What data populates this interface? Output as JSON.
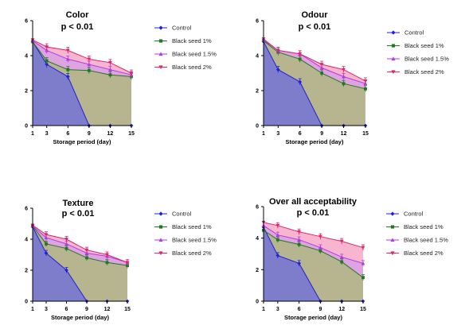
{
  "colors": {
    "Control": "#1f1fe6",
    "Black seed 1%": "#1e7a1e",
    "Black seed 1.5%": "#b03be8",
    "Black seed 2%": "#e0246e"
  },
  "chart_data": [
    {
      "type": "area",
      "title": "Color",
      "subtitle": "p < 0.01",
      "xlabel": "Storage period (day)",
      "ylabel": "",
      "x": [
        1,
        3,
        6,
        9,
        12,
        15
      ],
      "ylim": [
        0,
        6
      ],
      "yticks": [
        0,
        2,
        4,
        6
      ],
      "legend_position": "right",
      "series": [
        {
          "name": "Control",
          "values": [
            4.8,
            3.5,
            2.8,
            0,
            0,
            0
          ]
        },
        {
          "name": "Black seed 1%",
          "values": [
            4.8,
            3.7,
            3.2,
            3.15,
            2.9,
            2.8
          ]
        },
        {
          "name": "Black seed 1.5%",
          "values": [
            4.85,
            4.3,
            3.8,
            3.5,
            3.2,
            2.9
          ]
        },
        {
          "name": "Black seed 2%",
          "values": [
            4.9,
            4.5,
            4.3,
            3.8,
            3.6,
            3.0
          ]
        }
      ]
    },
    {
      "type": "area",
      "title": "Odour",
      "subtitle": "p < 0.01",
      "xlabel": "Storage period (day)",
      "ylabel": "",
      "x": [
        1,
        3,
        6,
        9,
        12,
        15
      ],
      "ylim": [
        0,
        6
      ],
      "yticks": [
        0,
        2,
        4,
        6
      ],
      "legend_position": "right",
      "series": [
        {
          "name": "Control",
          "values": [
            4.8,
            3.2,
            2.5,
            0,
            0,
            0
          ]
        },
        {
          "name": "Black seed 1%",
          "values": [
            4.85,
            4.2,
            3.8,
            3.0,
            2.4,
            2.1
          ]
        },
        {
          "name": "Black seed 1.5%",
          "values": [
            4.9,
            4.3,
            4.1,
            3.3,
            2.8,
            2.4
          ]
        },
        {
          "name": "Black seed 2%",
          "values": [
            4.95,
            4.3,
            4.1,
            3.5,
            3.2,
            2.55
          ]
        }
      ]
    },
    {
      "type": "area",
      "title": "Texture",
      "subtitle": "p < 0.01",
      "xlabel": "Storage period (day)",
      "ylabel": "",
      "x": [
        1,
        3,
        6,
        9,
        12,
        15
      ],
      "ylim": [
        0,
        6
      ],
      "yticks": [
        0,
        2,
        4,
        6
      ],
      "legend_position": "right",
      "series": [
        {
          "name": "Control",
          "values": [
            4.8,
            3.1,
            2.0,
            0,
            0,
            0
          ]
        },
        {
          "name": "Black seed 1%",
          "values": [
            4.85,
            3.7,
            3.4,
            2.8,
            2.5,
            2.3
          ]
        },
        {
          "name": "Black seed 1.5%",
          "values": [
            4.85,
            4.1,
            3.7,
            3.1,
            2.9,
            2.5
          ]
        },
        {
          "name": "Black seed 2%",
          "values": [
            4.9,
            4.3,
            4.0,
            3.3,
            3.0,
            2.5
          ]
        }
      ]
    },
    {
      "type": "area",
      "title": "Over all acceptability",
      "subtitle": "p < 0.01",
      "xlabel": "Storage period (day)",
      "ylabel": "",
      "x": [
        1,
        3,
        6,
        9,
        12,
        15
      ],
      "ylim": [
        0,
        6
      ],
      "yticks": [
        0,
        2,
        4,
        6
      ],
      "legend_position": "right",
      "series": [
        {
          "name": "Control",
          "values": [
            4.7,
            2.9,
            2.4,
            0,
            0,
            0
          ]
        },
        {
          "name": "Black seed 1%",
          "values": [
            4.5,
            3.9,
            3.6,
            3.2,
            2.5,
            1.5
          ]
        },
        {
          "name": "Black seed 1.5%",
          "values": [
            4.8,
            4.2,
            3.9,
            3.4,
            2.8,
            2.4
          ]
        },
        {
          "name": "Black seed 2%",
          "values": [
            5.0,
            4.8,
            4.4,
            4.1,
            3.8,
            3.4
          ]
        }
      ]
    }
  ]
}
